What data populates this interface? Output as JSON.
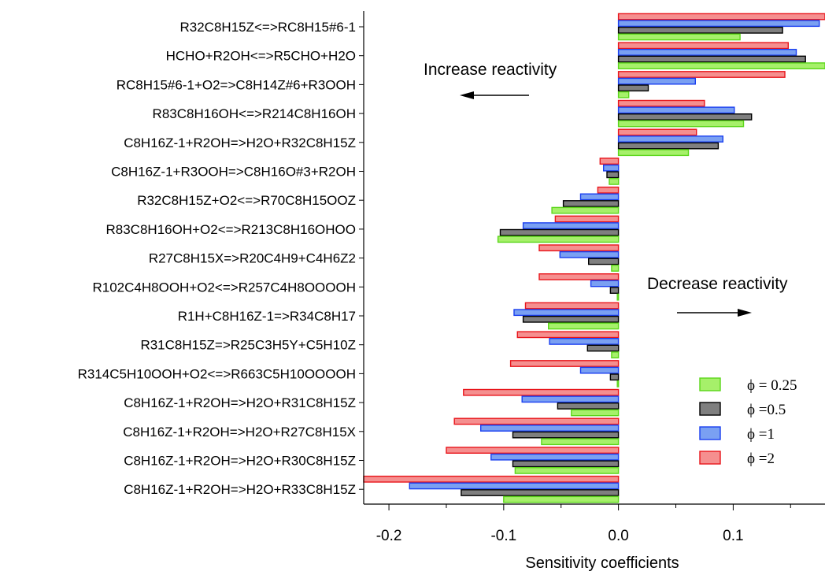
{
  "chart_data": {
    "type": "bar",
    "orientation": "horizontal",
    "xlabel": "Sensitivity coefficients",
    "xlim": [
      -0.222,
      0.18
    ],
    "xticks": [
      -0.2,
      -0.1,
      0.0,
      0.1
    ],
    "xtick_labels": [
      "-0.2",
      "-0.1",
      "0.0",
      "0.1"
    ],
    "grid": false,
    "legend_position": "bottom-right",
    "categories": [
      "R32C8H15Z<=>RC8H15#6-1",
      "HCHO+R2OH<=>R5CHO+H2O",
      "RC8H15#6-1+O2=>C8H14Z#6+R3OOH",
      "R83C8H16OH<=>R214C8H16OH",
      "C8H16Z-1+R2OH=>H2O+R32C8H15Z",
      "C8H16Z-1+R3OOH=>C8H16O#3+R2OH",
      "R32C8H15Z+O2<=>R70C8H15OOZ",
      "R83C8H16OH+O2<=>R213C8H16OHOO",
      "R27C8H15X=>R20C4H9+C4H6Z2",
      "R102C4H8OOH+O2<=>R257C4H8OOOOH",
      "R1H+C8H16Z-1=>R34C8H17",
      "R31C8H15Z=>R25C3H5Y+C5H10Z",
      "R314C5H10OOH+O2<=>R663C5H10OOOOH",
      "C8H16Z-1+R2OH=>H2O+R31C8H15Z",
      "C8H16Z-1+R2OH=>H2O+R27C8H15X",
      "C8H16Z-1+R2OH=>H2O+R30C8H15Z",
      "C8H16Z-1+R2OH=>H2O+R33C8H15Z"
    ],
    "series": [
      {
        "name": "ϕ =2",
        "fill": "#f58f8f",
        "stroke": "#e8151b",
        "values": [
          0.18,
          0.148,
          0.145,
          0.075,
          0.068,
          -0.016,
          -0.018,
          -0.055,
          -0.069,
          -0.069,
          -0.081,
          -0.088,
          -0.094,
          -0.135,
          -0.143,
          -0.15,
          -0.222
        ]
      },
      {
        "name": "ϕ =1",
        "fill": "#7aa0f2",
        "stroke": "#1a3ff0",
        "values": [
          0.175,
          0.155,
          0.067,
          0.101,
          0.091,
          -0.013,
          -0.033,
          -0.083,
          -0.051,
          -0.024,
          -0.091,
          -0.06,
          -0.033,
          -0.084,
          -0.12,
          -0.111,
          -0.182
        ]
      },
      {
        "name": "ϕ =0.5",
        "fill": "#7f7f7f",
        "stroke": "#000000",
        "values": [
          0.143,
          0.163,
          0.026,
          0.116,
          0.087,
          -0.01,
          -0.048,
          -0.103,
          -0.026,
          -0.007,
          -0.083,
          -0.027,
          -0.007,
          -0.053,
          -0.092,
          -0.092,
          -0.137
        ]
      },
      {
        "name": "ϕ = 0.25",
        "fill": "#a6f06a",
        "stroke": "#5bd61a",
        "values": [
          0.106,
          0.18,
          0.009,
          0.109,
          0.061,
          -0.008,
          -0.058,
          -0.105,
          -0.006,
          -0.001,
          -0.061,
          -0.006,
          -0.001,
          -0.041,
          -0.067,
          -0.09,
          -0.1
        ]
      }
    ],
    "annotations": {
      "increase": "Increase reactivity",
      "decrease": "Decrease reactivity"
    },
    "colors": {
      "axis": "#000000",
      "background": "#ffffff"
    }
  }
}
